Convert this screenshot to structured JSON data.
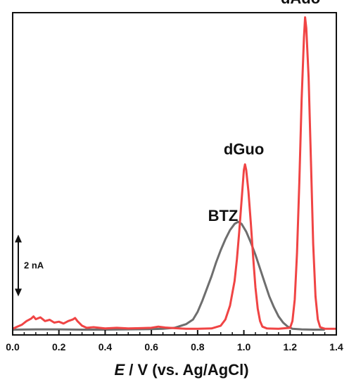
{
  "chart_data": {
    "type": "line",
    "xlabel_italic": "E",
    "xlabel_rest": " / V (vs. Ag/AgCl)",
    "xlim": [
      0.0,
      1.4
    ],
    "x_ticks": [
      "0.0",
      "0.2",
      "0.4",
      "0.6",
      "0.8",
      "1.0",
      "1.2",
      "1.4"
    ],
    "y_unit": "nA",
    "ylim": [
      -0.15,
      10.3
    ],
    "grid": false,
    "scale_bar": {
      "label": "2 nA",
      "value": 2.0
    },
    "series": [
      {
        "color": "#6e6e6e",
        "points": [
          [
            0.0,
            0.02
          ],
          [
            0.1,
            0.03
          ],
          [
            0.2,
            0.03
          ],
          [
            0.3,
            0.02
          ],
          [
            0.4,
            0.02
          ],
          [
            0.5,
            0.03
          ],
          [
            0.6,
            0.04
          ],
          [
            0.65,
            0.05
          ],
          [
            0.7,
            0.08
          ],
          [
            0.75,
            0.2
          ],
          [
            0.78,
            0.35
          ],
          [
            0.8,
            0.6
          ],
          [
            0.82,
            0.95
          ],
          [
            0.84,
            1.35
          ],
          [
            0.86,
            1.75
          ],
          [
            0.88,
            2.2
          ],
          [
            0.9,
            2.6
          ],
          [
            0.92,
            2.95
          ],
          [
            0.94,
            3.25
          ],
          [
            0.96,
            3.45
          ],
          [
            0.975,
            3.52
          ],
          [
            0.99,
            3.45
          ],
          [
            1.01,
            3.2
          ],
          [
            1.03,
            2.85
          ],
          [
            1.05,
            2.45
          ],
          [
            1.07,
            2.0
          ],
          [
            1.09,
            1.55
          ],
          [
            1.11,
            1.1
          ],
          [
            1.13,
            0.75
          ],
          [
            1.15,
            0.45
          ],
          [
            1.17,
            0.25
          ],
          [
            1.19,
            0.12
          ],
          [
            1.21,
            0.05
          ],
          [
            1.25,
            0.03
          ],
          [
            1.3,
            0.02
          ],
          [
            1.35,
            0.02
          ]
        ]
      },
      {
        "color": "#f04444",
        "points": [
          [
            0.0,
            0.05
          ],
          [
            0.02,
            0.12
          ],
          [
            0.04,
            0.18
          ],
          [
            0.06,
            0.3
          ],
          [
            0.08,
            0.38
          ],
          [
            0.09,
            0.45
          ],
          [
            0.1,
            0.36
          ],
          [
            0.12,
            0.42
          ],
          [
            0.14,
            0.3
          ],
          [
            0.16,
            0.34
          ],
          [
            0.18,
            0.25
          ],
          [
            0.2,
            0.28
          ],
          [
            0.22,
            0.22
          ],
          [
            0.24,
            0.3
          ],
          [
            0.26,
            0.35
          ],
          [
            0.27,
            0.4
          ],
          [
            0.28,
            0.3
          ],
          [
            0.3,
            0.15
          ],
          [
            0.32,
            0.08
          ],
          [
            0.35,
            0.1
          ],
          [
            0.4,
            0.06
          ],
          [
            0.45,
            0.08
          ],
          [
            0.5,
            0.06
          ],
          [
            0.55,
            0.07
          ],
          [
            0.6,
            0.08
          ],
          [
            0.63,
            0.12
          ],
          [
            0.66,
            0.09
          ],
          [
            0.7,
            0.07
          ],
          [
            0.75,
            0.05
          ],
          [
            0.8,
            0.05
          ],
          [
            0.86,
            0.06
          ],
          [
            0.9,
            0.15
          ],
          [
            0.92,
            0.35
          ],
          [
            0.94,
            0.8
          ],
          [
            0.96,
            1.6
          ],
          [
            0.97,
            2.3
          ],
          [
            0.98,
            3.2
          ],
          [
            0.99,
            4.2
          ],
          [
            1.0,
            5.2
          ],
          [
            1.005,
            5.38
          ],
          [
            1.01,
            5.2
          ],
          [
            1.02,
            4.5
          ],
          [
            1.03,
            3.5
          ],
          [
            1.04,
            2.4
          ],
          [
            1.05,
            1.4
          ],
          [
            1.06,
            0.7
          ],
          [
            1.07,
            0.3
          ],
          [
            1.08,
            0.12
          ],
          [
            1.1,
            0.06
          ],
          [
            1.15,
            0.05
          ],
          [
            1.2,
            0.08
          ],
          [
            1.21,
            0.3
          ],
          [
            1.22,
            1.0
          ],
          [
            1.23,
            2.5
          ],
          [
            1.24,
            4.8
          ],
          [
            1.25,
            7.5
          ],
          [
            1.26,
            9.5
          ],
          [
            1.265,
            10.15
          ],
          [
            1.27,
            9.8
          ],
          [
            1.28,
            8.2
          ],
          [
            1.29,
            5.5
          ],
          [
            1.3,
            2.8
          ],
          [
            1.31,
            1.1
          ],
          [
            1.32,
            0.35
          ],
          [
            1.33,
            0.1
          ],
          [
            1.35,
            0.05
          ],
          [
            1.4,
            0.05
          ]
        ]
      }
    ],
    "annotations": [
      {
        "text": "BTZ",
        "x": 0.91,
        "y": 3.55
      },
      {
        "text": "dGuo",
        "x": 1.0,
        "y": 5.7
      },
      {
        "text": "dAdo",
        "x": 1.245,
        "y": 10.6
      }
    ]
  }
}
